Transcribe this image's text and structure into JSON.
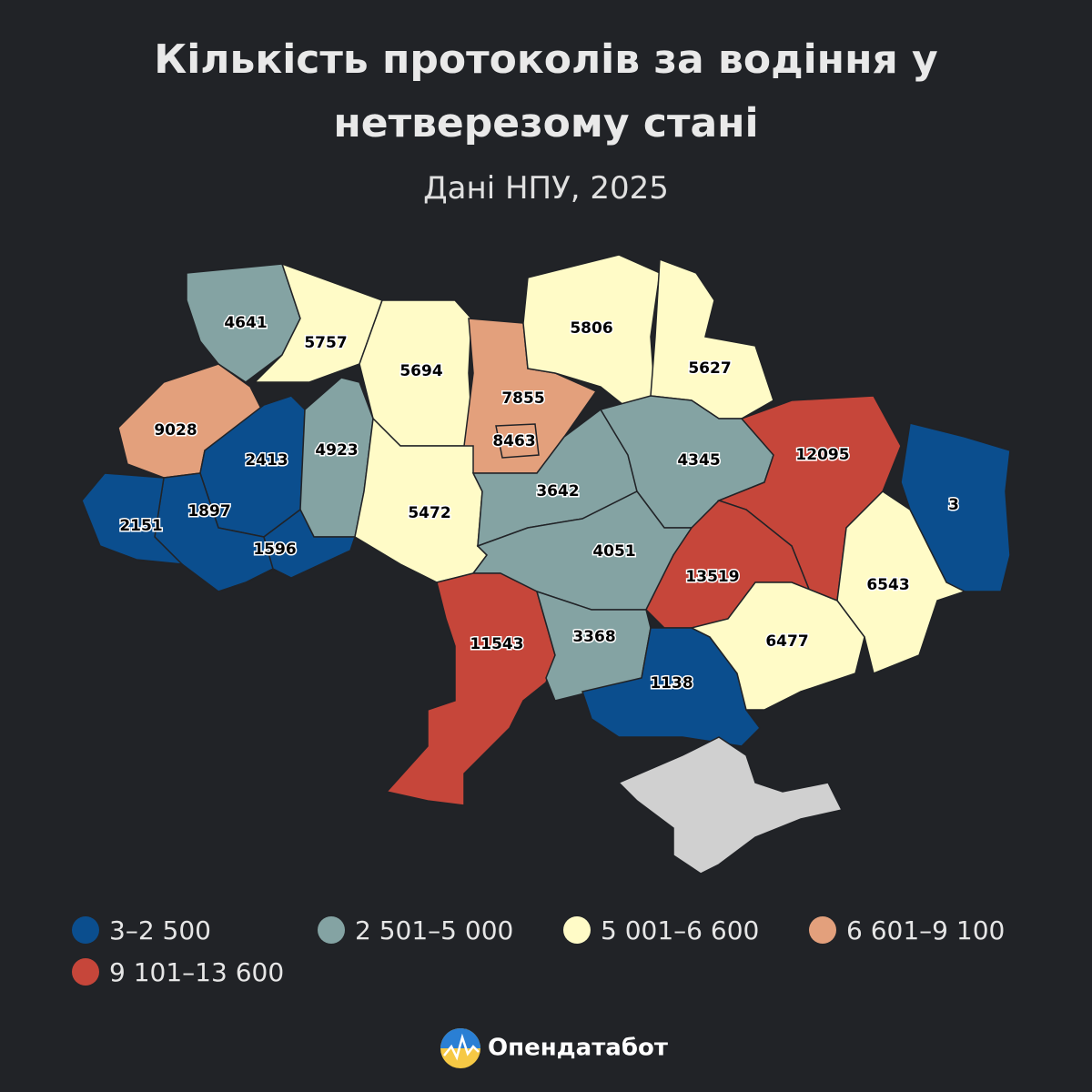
{
  "header": {
    "title_lines": [
      "Кількість протоколів за водіння у",
      "нетверезому стані"
    ],
    "subtitle": "Дані НПУ, 2025"
  },
  "regions": [
    {
      "value": 4641,
      "color": "#84a3a3"
    },
    {
      "value": 5757,
      "color": "#fffbc7"
    },
    {
      "value": 5694,
      "color": "#fffbc7"
    },
    {
      "value": 7855,
      "color": "#e3a07c"
    },
    {
      "value": 8463,
      "color": "#e3a07c"
    },
    {
      "value": 5806,
      "color": "#fffbc7"
    },
    {
      "value": 5627,
      "color": "#fffbc7"
    },
    {
      "value": 9028,
      "color": "#e3a07c"
    },
    {
      "value": 2413,
      "color": "#0b4e8e"
    },
    {
      "value": 4923,
      "color": "#84a3a3"
    },
    {
      "value": 1897,
      "color": "#0b4e8e"
    },
    {
      "value": 2151,
      "color": "#0b4e8e"
    },
    {
      "value": 1596,
      "color": "#0b4e8e"
    },
    {
      "value": 5472,
      "color": "#fffbc7"
    },
    {
      "value": 3642,
      "color": "#84a3a3"
    },
    {
      "value": 4345,
      "color": "#84a3a3"
    },
    {
      "value": 12095,
      "color": "#c6463a"
    },
    {
      "value": 3,
      "color": "#0b4e8e"
    },
    {
      "value": 4051,
      "color": "#84a3a3"
    },
    {
      "value": 13519,
      "color": "#c6463a"
    },
    {
      "value": 6543,
      "color": "#fffbc7"
    },
    {
      "value": 11543,
      "color": "#c6463a"
    },
    {
      "value": 3368,
      "color": "#84a3a3"
    },
    {
      "value": 1138,
      "color": "#0b4e8e"
    },
    {
      "value": 6477,
      "color": "#fffbc7"
    }
  ],
  "legend": [
    {
      "label": "3–2 500",
      "color": "#0b4e8e"
    },
    {
      "label": "2 501–5 000",
      "color": "#84a3a3"
    },
    {
      "label": "5 001–6 600",
      "color": "#fffbc7"
    },
    {
      "label": "6 601–9 100",
      "color": "#e3a07c"
    },
    {
      "label": "9 101–13 600",
      "color": "#c6463a"
    }
  ],
  "brand": "Опендатабот"
}
